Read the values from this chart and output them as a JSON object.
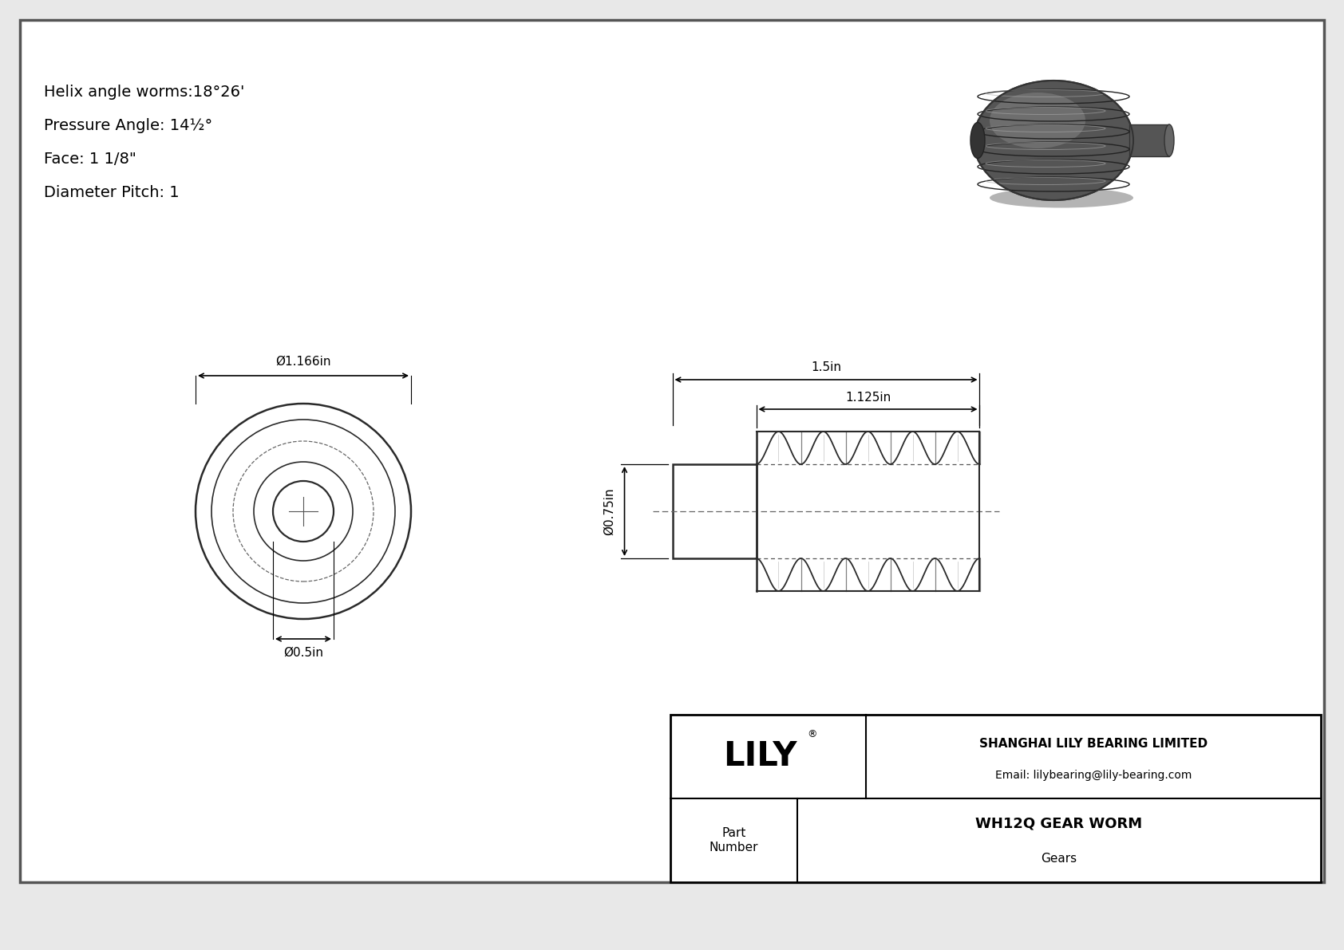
{
  "bg_color": "#e8e8e8",
  "inner_bg": "#ffffff",
  "border_color": "#000000",
  "line_color": "#2a2a2a",
  "title_lines": [
    "Helix angle worms:18°26'",
    "Pressure Angle: 14½°",
    "Face: 1 1/8\"",
    "Diameter Pitch: 1"
  ],
  "dim_outer": "Ø1.166in",
  "dim_inner": "Ø0.5in",
  "dim_bore": "Ø0.75in",
  "dim_length_total": "1.5in",
  "dim_length_thread": "1.125in",
  "company": "SHANGHAI LILY BEARING LIMITED",
  "email": "Email: lilybearing@lily-bearing.com",
  "part_label": "Part\nNumber",
  "part_name": "WH12Q GEAR WORM",
  "part_category": "Gears",
  "logo": "LILY",
  "logo_reg": "®"
}
